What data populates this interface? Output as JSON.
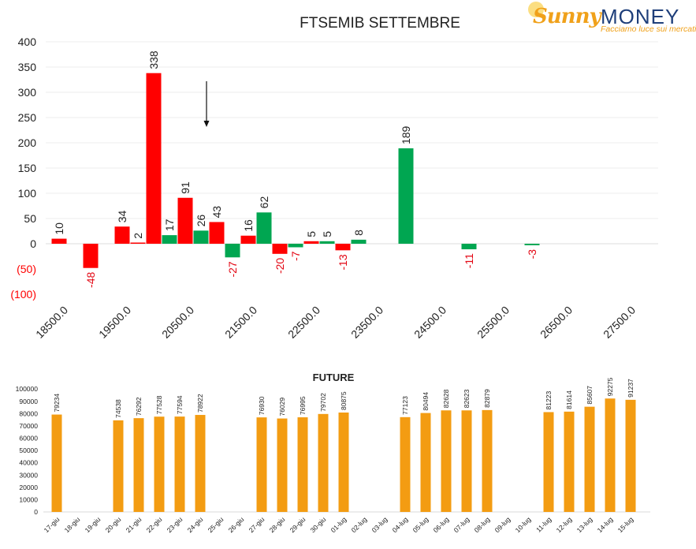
{
  "logo": {
    "brand_sunny": "Sunny",
    "brand_money": "MONEY",
    "tagline": "Facciamo luce sui mercati"
  },
  "chart_data": [
    {
      "type": "bar",
      "title": "FTSEMIB SETTEMBRE",
      "ylim": [
        -100,
        400
      ],
      "yticks": [
        400,
        350,
        300,
        250,
        200,
        150,
        100,
        50,
        0,
        -50,
        -100
      ],
      "ytick_labels": [
        "400",
        "350",
        "300",
        "250",
        "200",
        "150",
        "100",
        "50",
        "0",
        "(50)",
        "(100)"
      ],
      "xtick_labels": [
        "18500.0",
        "19500.0",
        "20500.0",
        "21500.0",
        "22500.0",
        "23500.0",
        "24500.0",
        "25500.0",
        "26500.0",
        "27500.0"
      ],
      "grid": true,
      "colors": {
        "red": "#ff0000",
        "green": "#00a651",
        "negative_label": "#e30613"
      },
      "bars": [
        {
          "strike": 18500,
          "value": 10,
          "color": "red"
        },
        {
          "strike": 19000,
          "value": -48,
          "color": "red"
        },
        {
          "strike": 19500,
          "value": 34,
          "color": "red"
        },
        {
          "strike": 19750,
          "value": 2,
          "color": "red"
        },
        {
          "strike": 20000,
          "value": 338,
          "color": "red"
        },
        {
          "strike": 20250,
          "value": 17,
          "color": "green"
        },
        {
          "strike": 20500,
          "value": 91,
          "color": "red"
        },
        {
          "strike": 20750,
          "value": 26,
          "color": "green"
        },
        {
          "strike": 21000,
          "value": 43,
          "color": "red"
        },
        {
          "strike": 21250,
          "value": -27,
          "color": "green"
        },
        {
          "strike": 21500,
          "value": 16,
          "color": "red"
        },
        {
          "strike": 21750,
          "value": 62,
          "color": "green"
        },
        {
          "strike": 22000,
          "value": -20,
          "color": "red"
        },
        {
          "strike": 22250,
          "value": -7,
          "color": "green"
        },
        {
          "strike": 22500,
          "value": 5,
          "color": "red"
        },
        {
          "strike": 22750,
          "value": 5,
          "color": "green"
        },
        {
          "strike": 23000,
          "value": -13,
          "color": "red"
        },
        {
          "strike": 23250,
          "value": 8,
          "color": "green"
        },
        {
          "strike": 24000,
          "value": 189,
          "color": "green"
        },
        {
          "strike": 25000,
          "value": -11,
          "color": "green"
        },
        {
          "strike": 26000,
          "value": -3,
          "color": "green"
        }
      ],
      "annotation": {
        "type": "arrow",
        "direction": "down",
        "strike": 20875
      }
    },
    {
      "type": "bar",
      "title": "FUTURE",
      "ylim": [
        0,
        100000
      ],
      "yticks": [
        0,
        10000,
        20000,
        30000,
        40000,
        50000,
        60000,
        70000,
        80000,
        90000,
        100000
      ],
      "color": "#f39c12",
      "categories": [
        "17-giu",
        "18-giu",
        "19-giu",
        "20-giu",
        "21-giu",
        "22-giu",
        "23-giu",
        "24-giu",
        "25-giu",
        "26-giu",
        "27-giu",
        "28-giu",
        "29-giu",
        "30-giu",
        "01-lug",
        "02-lug",
        "03-lug",
        "04-lug",
        "05-lug",
        "06-lug",
        "07-lug",
        "08-lug",
        "09-lug",
        "10-lug",
        "11-lug",
        "12-lug",
        "13-lug",
        "14-lug",
        "15-lug"
      ],
      "values": [
        79234,
        null,
        null,
        74538,
        76292,
        77528,
        77594,
        78922,
        null,
        null,
        76930,
        76029,
        76995,
        79702,
        80875,
        null,
        null,
        77123,
        80494,
        82628,
        82623,
        82879,
        null,
        null,
        81223,
        81614,
        85607,
        92275,
        91237
      ]
    }
  ]
}
